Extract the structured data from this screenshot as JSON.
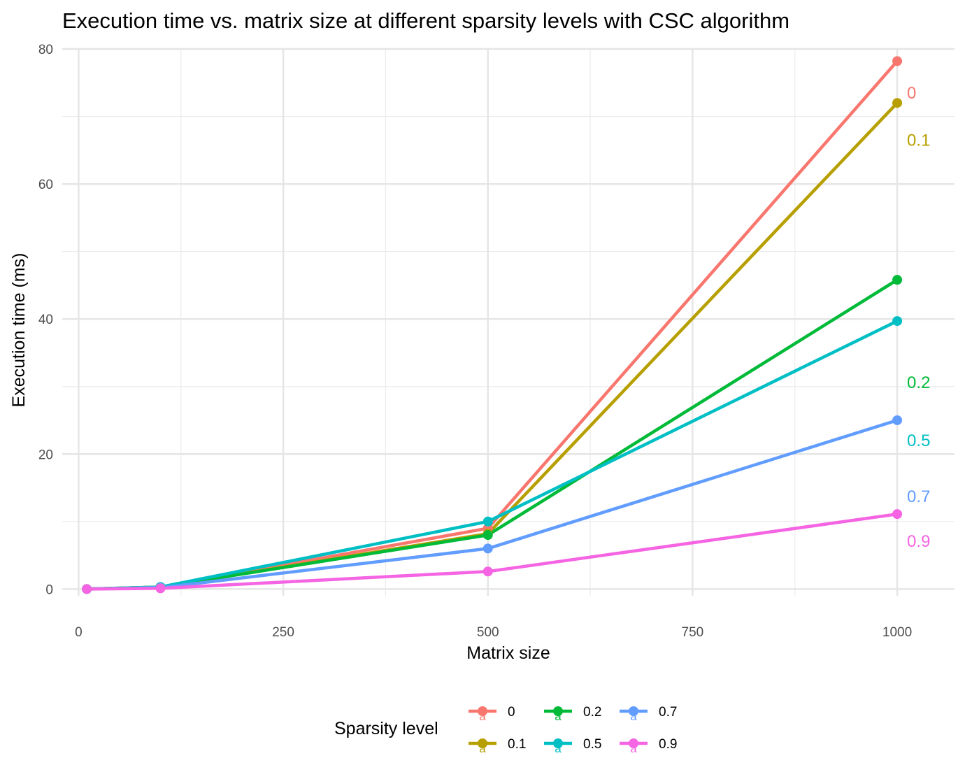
{
  "chart_data": {
    "type": "line",
    "title": "Execution time vs. matrix size at different sparsity levels with CSC algorithm",
    "xlabel": "Matrix size",
    "ylabel": "Execution time (ms)",
    "xlim": [
      -20,
      1070
    ],
    "ylim": [
      -1,
      80
    ],
    "x_ticks": [
      0,
      250,
      500,
      750,
      1000
    ],
    "y_ticks": [
      0,
      20,
      40,
      60,
      80
    ],
    "x_tick_labels": [
      "0",
      "250",
      "500",
      "750",
      "1000"
    ],
    "y_tick_labels": [
      "0",
      "20",
      "40",
      "60",
      "80"
    ],
    "grid": true,
    "x": [
      10,
      100,
      500,
      1000
    ],
    "series": [
      {
        "name": "0",
        "color": "#F8766D",
        "values": [
          0.0,
          0.3,
          9.0,
          78.2
        ],
        "end_label": "0",
        "end_label_y": 73.5
      },
      {
        "name": "0.1",
        "color": "#B79F00",
        "values": [
          0.0,
          0.3,
          8.2,
          72.0
        ],
        "end_label": "0.1",
        "end_label_y": 66.5
      },
      {
        "name": "0.2",
        "color": "#00BA38",
        "values": [
          0.0,
          0.3,
          8.0,
          45.8
        ],
        "end_label": "0.2",
        "end_label_y": 30.6
      },
      {
        "name": "0.5",
        "color": "#00BFC4",
        "values": [
          0.0,
          0.3,
          10.0,
          39.7
        ],
        "end_label": "0.5",
        "end_label_y": 22.0
      },
      {
        "name": "0.7",
        "color": "#619CFF",
        "values": [
          0.0,
          0.2,
          6.0,
          25.0
        ],
        "end_label": "0.7",
        "end_label_y": 13.7
      },
      {
        "name": "0.9",
        "color": "#F564E3",
        "values": [
          0.0,
          0.1,
          2.6,
          11.1
        ],
        "end_label": "0.9",
        "end_label_y": 7.1
      }
    ],
    "legend": {
      "title": "Sparsity level",
      "position": "bottom",
      "key_glyph": "a",
      "columns": [
        [
          "0",
          "0.1"
        ],
        [
          "0.2",
          "0.5"
        ],
        [
          "0.7",
          "0.9"
        ]
      ]
    }
  }
}
